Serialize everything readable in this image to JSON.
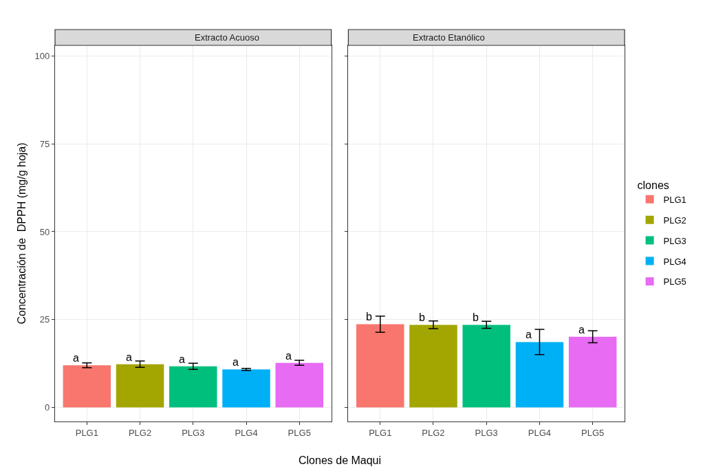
{
  "chart_data": [
    {
      "type": "bar",
      "title": "Extracto Acuoso",
      "legend": "right",
      "legend_title": "clones",
      "xlabel": "Clones de Maqui",
      "ylabel": "Concentración de  DPPH (mg/g hoja)",
      "categories": [
        "PLG1",
        "PLG2",
        "PLG3",
        "PLG4",
        "PLG5"
      ],
      "series": [
        {
          "name": "PLG1",
          "color": "#f8766d",
          "values": [
            12.0,
            null,
            null,
            null,
            null
          ],
          "errors": [
            0.7,
            null,
            null,
            null,
            null
          ]
        },
        {
          "name": "PLG2",
          "color": "#a3a500",
          "values": [
            null,
            12.3,
            null,
            null,
            null
          ],
          "errors": [
            null,
            0.9,
            null,
            null,
            null
          ]
        },
        {
          "name": "PLG3",
          "color": "#00bf7d",
          "values": [
            null,
            null,
            11.7,
            null,
            null
          ],
          "errors": [
            null,
            null,
            0.9,
            null,
            null
          ]
        },
        {
          "name": "PLG4",
          "color": "#00b0f6",
          "values": [
            null,
            null,
            null,
            10.8,
            null
          ],
          "errors": [
            null,
            null,
            null,
            0.3,
            null
          ]
        },
        {
          "name": "PLG5",
          "color": "#e76bf3",
          "values": [
            null,
            null,
            null,
            null,
            12.7
          ],
          "errors": [
            null,
            null,
            null,
            null,
            0.7
          ]
        }
      ],
      "annotations": [
        {
          "text": "a",
          "x": "PLG1",
          "y": 12.0
        },
        {
          "text": "a",
          "x": "PLG2",
          "y": 12.3
        },
        {
          "text": "a",
          "x": "PLG3",
          "y": 11.7
        },
        {
          "text": "a",
          "x": "PLG4",
          "y": 10.8
        },
        {
          "text": "a",
          "x": "PLG5",
          "y": 12.7
        }
      ],
      "ylim": [
        -4,
        103
      ],
      "yticks": [
        0,
        25,
        50,
        75,
        100
      ],
      "grid": true
    },
    {
      "type": "bar",
      "title": "Extracto Etanólico",
      "categories": [
        "PLG1",
        "PLG2",
        "PLG3",
        "PLG4",
        "PLG5"
      ],
      "series": [
        {
          "name": "PLG1",
          "color": "#f8766d",
          "values": [
            23.7,
            null,
            null,
            null,
            null
          ],
          "errors": [
            2.3,
            null,
            null,
            null,
            null
          ]
        },
        {
          "name": "PLG2",
          "color": "#a3a500",
          "values": [
            null,
            23.5,
            null,
            null,
            null
          ],
          "errors": [
            null,
            1.1,
            null,
            null,
            null
          ]
        },
        {
          "name": "PLG3",
          "color": "#00bf7d",
          "values": [
            null,
            null,
            23.5,
            null,
            null
          ],
          "errors": [
            null,
            null,
            1.0,
            null,
            null
          ]
        },
        {
          "name": "PLG4",
          "color": "#00b0f6",
          "values": [
            null,
            null,
            null,
            18.6,
            null
          ],
          "errors": [
            null,
            null,
            null,
            3.6,
            null
          ]
        },
        {
          "name": "PLG5",
          "color": "#e76bf3",
          "values": [
            null,
            null,
            null,
            null,
            20.1
          ],
          "errors": [
            null,
            null,
            null,
            null,
            1.7
          ]
        }
      ],
      "annotations": [
        {
          "text": "b",
          "x": "PLG1",
          "y": 23.7
        },
        {
          "text": "b",
          "x": "PLG2",
          "y": 23.5
        },
        {
          "text": "b",
          "x": "PLG3",
          "y": 23.5
        },
        {
          "text": "a",
          "x": "PLG4",
          "y": 18.6
        },
        {
          "text": "a",
          "x": "PLG5",
          "y": 20.1
        }
      ],
      "ylim": [
        -4,
        103
      ],
      "yticks": [
        0,
        25,
        50,
        75,
        100
      ],
      "grid": true,
      "tick_labels": "x"
    }
  ]
}
